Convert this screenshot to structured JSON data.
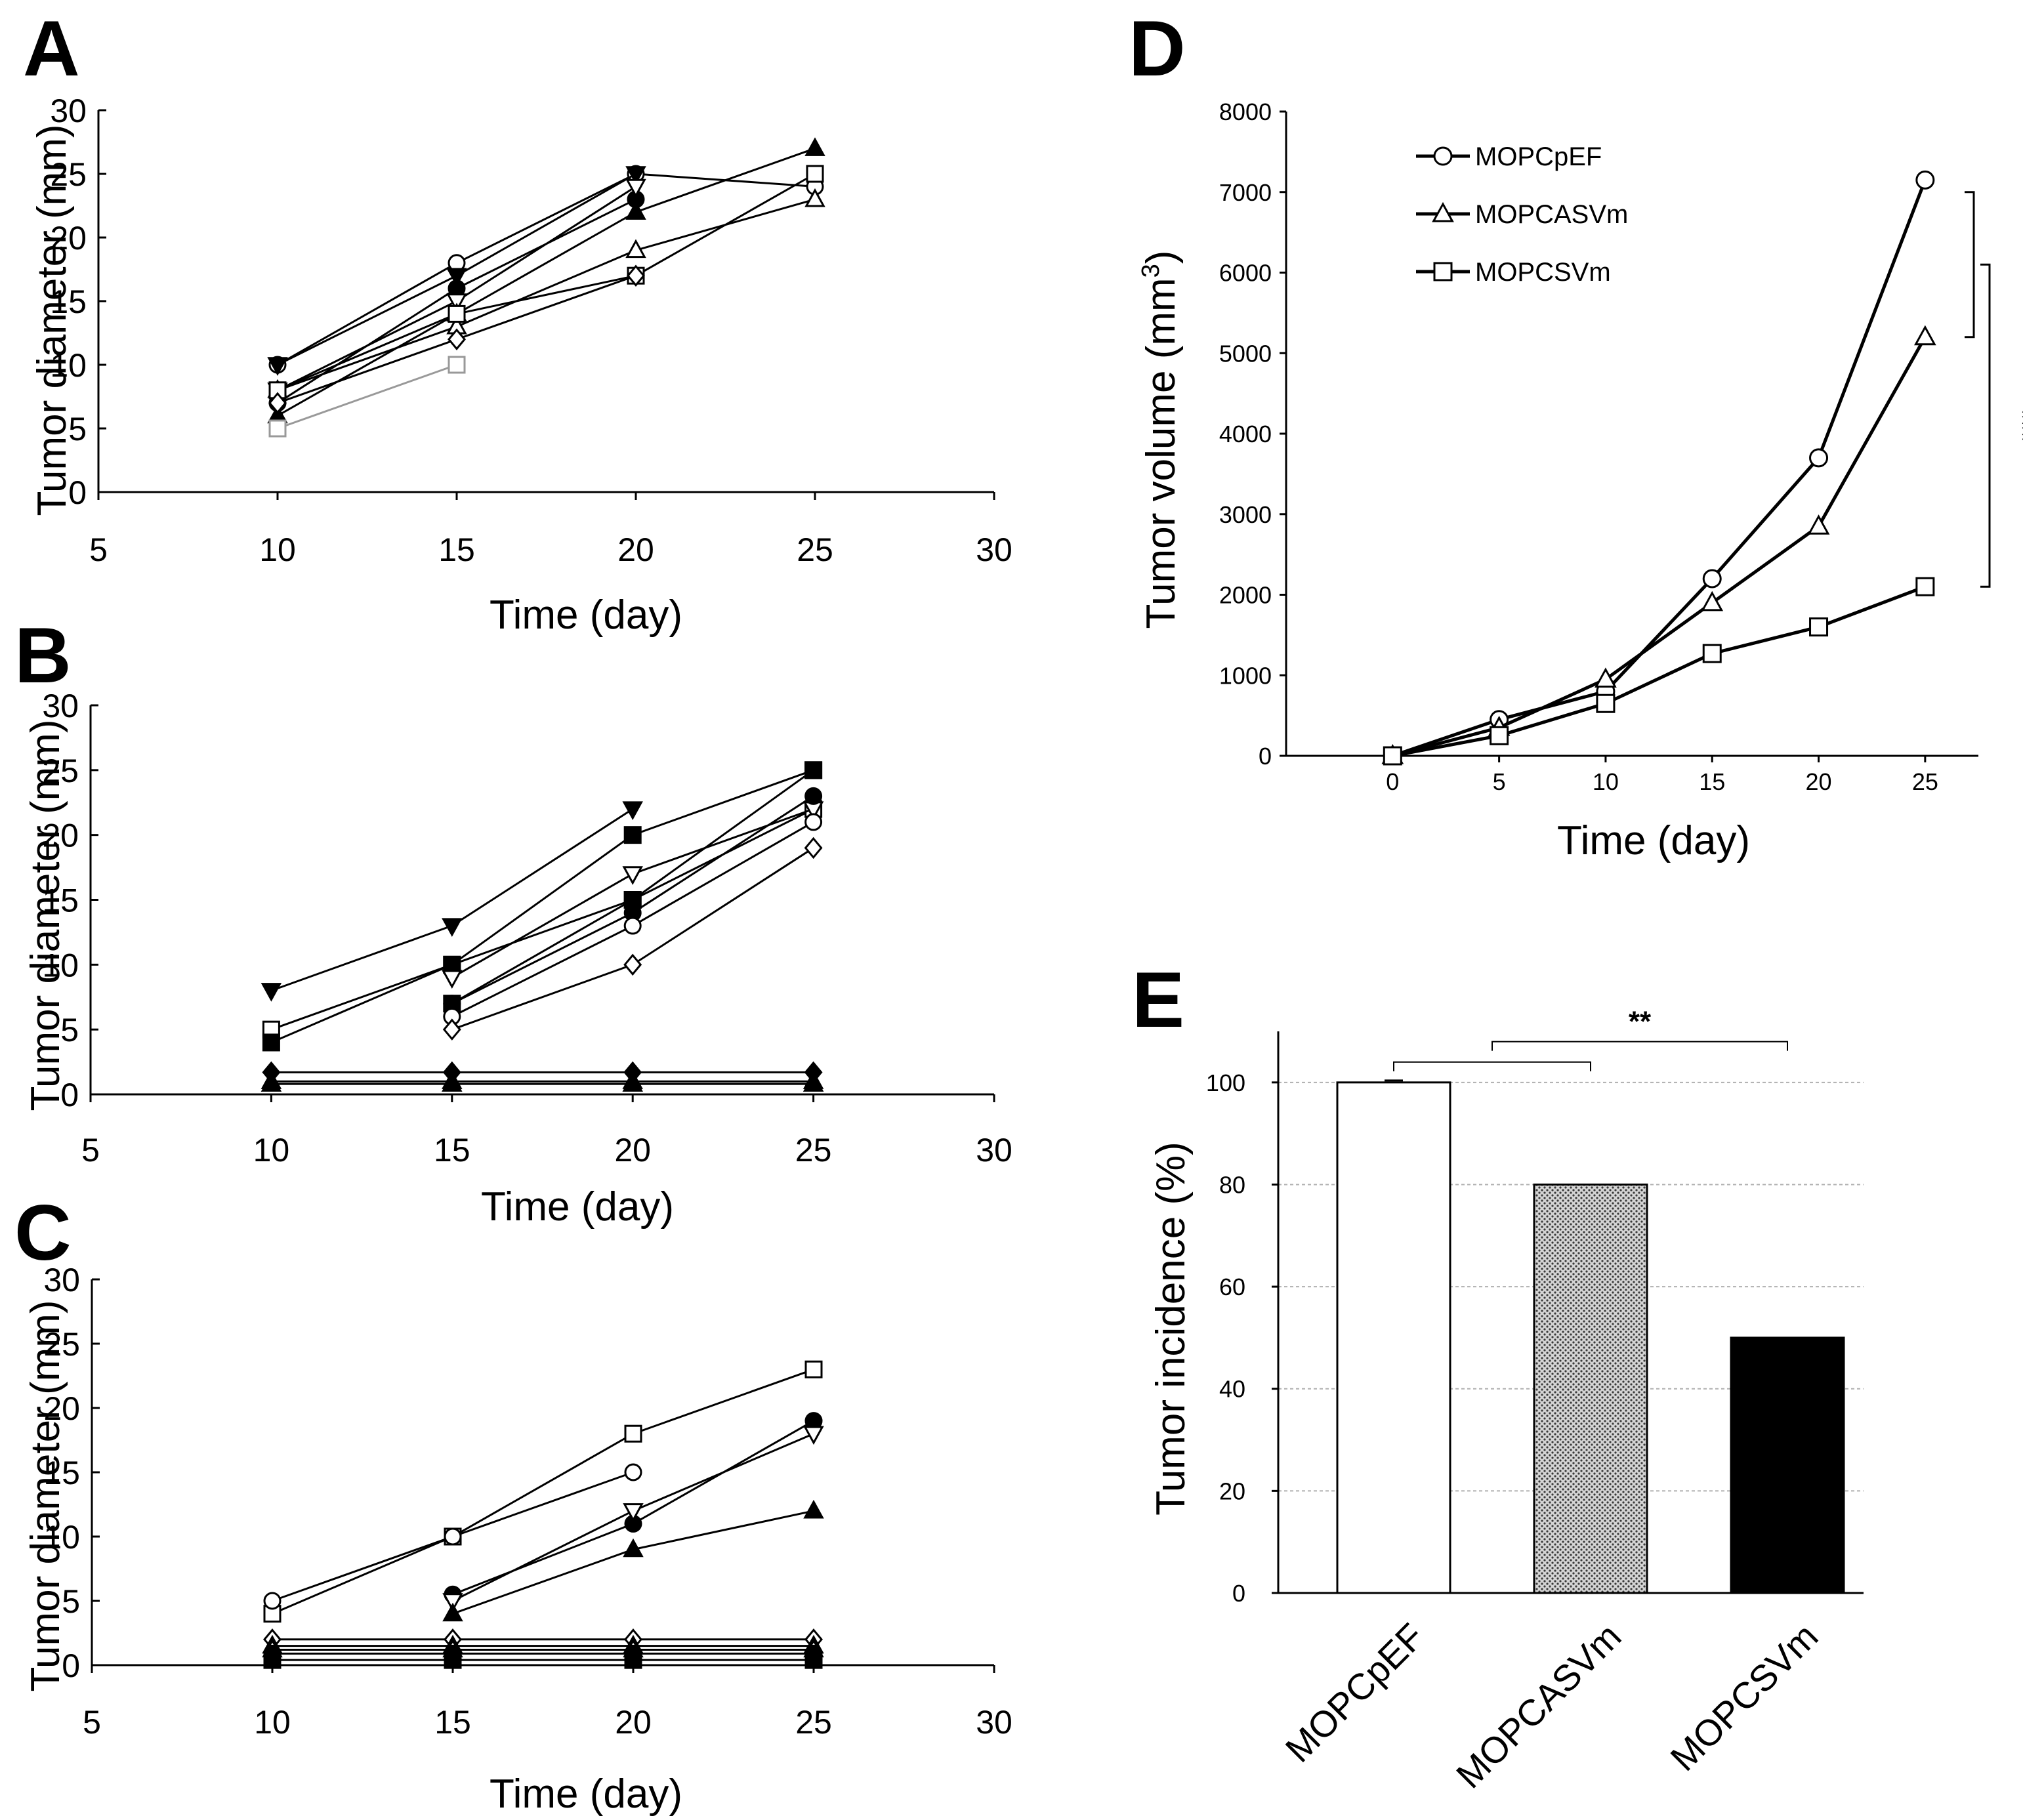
{
  "figure": {
    "background": "#ffffff"
  },
  "chart_data": [
    {
      "id": "A",
      "panel_label": "A",
      "type": "line",
      "xlabel": "Time (day)",
      "ylabel": "Tumor diameter (mm)",
      "xlim": [
        5,
        30
      ],
      "ylim": [
        0,
        30
      ],
      "xticks": [
        5,
        10,
        15,
        20,
        25,
        30
      ],
      "yticks": [
        0,
        5,
        10,
        15,
        20,
        25,
        30
      ],
      "series": [
        {
          "marker": "circle",
          "fill": "open",
          "color": "#000000",
          "x": [
            10,
            15,
            20,
            25
          ],
          "y": [
            10,
            18,
            25,
            24
          ]
        },
        {
          "marker": "circle",
          "fill": "filled",
          "color": "#000000",
          "x": [
            10,
            15,
            20
          ],
          "y": [
            7,
            16,
            23
          ]
        },
        {
          "marker": "triangle-down",
          "fill": "filled",
          "color": "#000000",
          "x": [
            10,
            15,
            20
          ],
          "y": [
            10,
            17,
            25
          ]
        },
        {
          "marker": "triangle-down",
          "fill": "open",
          "color": "#000000",
          "x": [
            10,
            15,
            20
          ],
          "y": [
            8,
            15,
            24
          ]
        },
        {
          "marker": "triangle",
          "fill": "filled",
          "color": "#000000",
          "x": [
            10,
            15,
            20,
            25
          ],
          "y": [
            6,
            14,
            22,
            27
          ]
        },
        {
          "marker": "triangle",
          "fill": "open",
          "color": "#000000",
          "x": [
            10,
            15,
            20,
            25
          ],
          "y": [
            8,
            13,
            19,
            23
          ]
        },
        {
          "marker": "square",
          "fill": "open",
          "color": "#000000",
          "x": [
            10,
            15,
            20,
            25
          ],
          "y": [
            8,
            14,
            17,
            25
          ]
        },
        {
          "marker": "diamond",
          "fill": "open",
          "color": "#000000",
          "x": [
            10,
            15,
            20
          ],
          "y": [
            7,
            12,
            17
          ]
        },
        {
          "marker": "square",
          "fill": "open",
          "color": "#999999",
          "x": [
            10,
            15
          ],
          "y": [
            5,
            10
          ]
        }
      ]
    },
    {
      "id": "B",
      "panel_label": "B",
      "type": "line",
      "xlabel": "Time (day)",
      "ylabel": "Tumor diameter (mm)",
      "xlim": [
        5,
        30
      ],
      "ylim": [
        0,
        30
      ],
      "xticks": [
        5,
        10,
        15,
        20,
        25,
        30
      ],
      "yticks": [
        0,
        5,
        10,
        15,
        20,
        25,
        30
      ],
      "series": [
        {
          "marker": "triangle-down",
          "fill": "filled",
          "color": "#000000",
          "x": [
            10,
            15,
            20
          ],
          "y": [
            8,
            13,
            22
          ]
        },
        {
          "marker": "square",
          "fill": "open",
          "color": "#000000",
          "x": [
            10,
            15,
            20,
            25
          ],
          "y": [
            5,
            10,
            15,
            22
          ]
        },
        {
          "marker": "square",
          "fill": "filled",
          "color": "#000000",
          "x": [
            10,
            15,
            20,
            25
          ],
          "y": [
            4,
            10,
            20,
            25
          ]
        },
        {
          "marker": "triangle-down",
          "fill": "open",
          "color": "#000000",
          "x": [
            15,
            20,
            25
          ],
          "y": [
            9,
            17,
            22
          ]
        },
        {
          "marker": "square",
          "fill": "filled",
          "color": "#000000",
          "x": [
            15,
            20,
            25
          ],
          "y": [
            7,
            15,
            25
          ]
        },
        {
          "marker": "circle",
          "fill": "filled",
          "color": "#000000",
          "x": [
            15,
            20,
            25
          ],
          "y": [
            7,
            14,
            23
          ]
        },
        {
          "marker": "circle",
          "fill": "open",
          "color": "#000000",
          "x": [
            15,
            20,
            25
          ],
          "y": [
            6,
            13,
            21
          ]
        },
        {
          "marker": "diamond",
          "fill": "open",
          "color": "#000000",
          "x": [
            15,
            20,
            25
          ],
          "y": [
            5,
            10,
            19
          ]
        },
        {
          "marker": "diamond",
          "fill": "filled",
          "color": "#000000",
          "x": [
            10,
            15,
            20,
            25
          ],
          "y": [
            1.7,
            1.7,
            1.7,
            1.7
          ]
        },
        {
          "marker": "triangle",
          "fill": "open",
          "color": "#000000",
          "x": [
            10,
            15,
            20,
            25
          ],
          "y": [
            1,
            1,
            1,
            1
          ]
        },
        {
          "marker": "triangle",
          "fill": "filled",
          "color": "#000000",
          "x": [
            10,
            15,
            20,
            25
          ],
          "y": [
            0.8,
            0.8,
            0.8,
            0.8
          ]
        }
      ]
    },
    {
      "id": "C",
      "panel_label": "C",
      "type": "line",
      "xlabel": "Time (day)",
      "ylabel": "Tumor diameter (mm)",
      "xlim": [
        5,
        30
      ],
      "ylim": [
        0,
        30
      ],
      "xticks": [
        5,
        10,
        15,
        20,
        25,
        30
      ],
      "yticks": [
        0,
        5,
        10,
        15,
        20,
        25,
        30
      ],
      "series": [
        {
          "marker": "square",
          "fill": "open",
          "color": "#000000",
          "x": [
            10,
            15,
            20,
            25
          ],
          "y": [
            4,
            10,
            18,
            23
          ]
        },
        {
          "marker": "circle",
          "fill": "open",
          "color": "#000000",
          "x": [
            10,
            15,
            20
          ],
          "y": [
            5,
            10,
            15
          ]
        },
        {
          "marker": "circle",
          "fill": "filled",
          "color": "#000000",
          "x": [
            15,
            20,
            25
          ],
          "y": [
            5.5,
            11,
            19
          ]
        },
        {
          "marker": "triangle-down",
          "fill": "open",
          "color": "#000000",
          "x": [
            15,
            20,
            25
          ],
          "y": [
            5,
            12,
            18
          ]
        },
        {
          "marker": "triangle",
          "fill": "filled",
          "color": "#000000",
          "x": [
            15,
            20,
            25
          ],
          "y": [
            4,
            9,
            12
          ]
        },
        {
          "marker": "diamond",
          "fill": "open",
          "color": "#000000",
          "x": [
            10,
            15,
            20,
            25
          ],
          "y": [
            2,
            2,
            2,
            2
          ]
        },
        {
          "marker": "triangle",
          "fill": "filled",
          "color": "#000000",
          "x": [
            10,
            15,
            20,
            25
          ],
          "y": [
            1.5,
            1.5,
            1.5,
            1.5
          ]
        },
        {
          "marker": "triangle",
          "fill": "open",
          "color": "#000000",
          "x": [
            10,
            15,
            20,
            25
          ],
          "y": [
            1.2,
            1.2,
            1.2,
            1.2
          ]
        },
        {
          "marker": "circle",
          "fill": "filled",
          "color": "#000000",
          "x": [
            10,
            15,
            20,
            25
          ],
          "y": [
            0.9,
            0.9,
            0.9,
            0.9
          ]
        },
        {
          "marker": "square",
          "fill": "filled",
          "color": "#000000",
          "x": [
            10,
            15,
            20,
            25
          ],
          "y": [
            0.4,
            0.4,
            0.4,
            0.4
          ]
        }
      ]
    },
    {
      "id": "D",
      "panel_label": "D",
      "type": "line",
      "xlabel": "Time (day)",
      "ylabel_main": "Tumor volume (mm",
      "ylabel_superscript": "3",
      "ylabel_close": ")",
      "xlim": [
        -5,
        27.5
      ],
      "ylim": [
        0,
        8000
      ],
      "xticks": [
        0,
        5,
        10,
        15,
        20,
        25
      ],
      "yticks": [
        0,
        1000,
        2000,
        3000,
        4000,
        5000,
        6000,
        7000,
        8000
      ],
      "legend_position": "top-left",
      "series": [
        {
          "name": "MOPCpEF",
          "marker": "circle",
          "fill": "open",
          "x": [
            0,
            5,
            10,
            15,
            20,
            25
          ],
          "y": [
            0,
            450,
            800,
            2200,
            3700,
            7150
          ]
        },
        {
          "name": "MOPCASVm",
          "marker": "triangle",
          "fill": "open",
          "x": [
            0,
            5,
            10,
            15,
            20,
            25
          ],
          "y": [
            0,
            350,
            950,
            1900,
            2850,
            5200
          ]
        },
        {
          "name": "MOPCSVm",
          "marker": "square",
          "fill": "open",
          "x": [
            0,
            5,
            10,
            15,
            20,
            25
          ],
          "y": [
            0,
            250,
            650,
            1270,
            1600,
            2100
          ]
        }
      ],
      "significance": [
        {
          "from": "MOPCpEF",
          "to": "MOPCASVm",
          "y_top": 7000,
          "y_bottom": 5200,
          "label": ""
        },
        {
          "from": "MOPCASVm",
          "to": "MOPCSVm",
          "y_top": 6100,
          "y_bottom": 2100,
          "label": "***"
        }
      ]
    },
    {
      "id": "E",
      "panel_label": "E",
      "type": "bar",
      "ylabel": "Tumor incidence (%)",
      "ylim": [
        0,
        110
      ],
      "yticks": [
        0,
        20,
        40,
        60,
        80,
        100
      ],
      "grid": true,
      "categories": [
        "MOPCpEF",
        "MOPCASVm",
        "MOPCSVm"
      ],
      "values": [
        100,
        80,
        50
      ],
      "bar_fills": [
        "white",
        "dotted",
        "black"
      ],
      "significance": [
        {
          "from": 0,
          "to": 1,
          "y": 104,
          "label": ""
        },
        {
          "from": 0.5,
          "to": 2,
          "y": 108,
          "label": "**"
        }
      ]
    }
  ]
}
